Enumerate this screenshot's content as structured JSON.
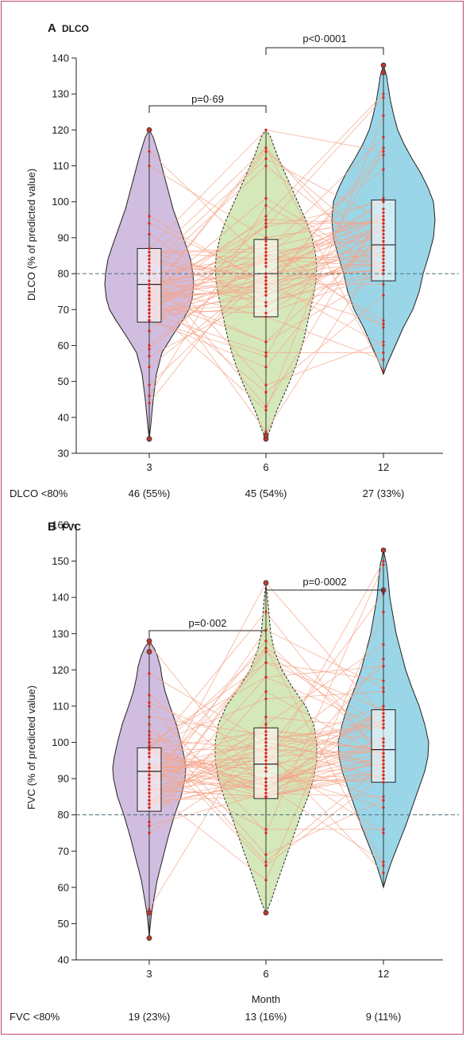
{
  "colors": {
    "purple": "#cbb6db",
    "green": "#cfe5b3",
    "blue": "#8fd1e6",
    "line": "#f4a58a",
    "dot": "#d9251d",
    "dashed": "#4f6d7a",
    "frame": "#c0457a"
  },
  "panels": [
    {
      "letter": "A",
      "name": "DLCO",
      "ylabel": "DLCO (% of predicted value)",
      "xlabel": "",
      "threshold_label": "DLCO <80%",
      "threshold_counts": [
        "46 (55%)",
        "45 (54%)",
        "27 (33%)"
      ],
      "pvalues": [
        "p=0·69",
        "p<0·0001"
      ],
      "ticks": [
        "30",
        "40",
        "50",
        "60",
        "70",
        "80",
        "90",
        "100",
        "110",
        "120",
        "130",
        "140"
      ]
    },
    {
      "letter": "B",
      "name": "FVC",
      "ylabel": "FVC (% of predicted value)",
      "xlabel": "Month",
      "threshold_label": "FVC <80%",
      "threshold_counts": [
        "19 (23%)",
        "13 (16%)",
        "9 (11%)"
      ],
      "pvalues": [
        "p=0·002",
        "p=0·0002"
      ],
      "ticks": [
        "40",
        "50",
        "60",
        "70",
        "80",
        "90",
        "100",
        "110",
        "120",
        "130",
        "140",
        "150",
        "160"
      ]
    }
  ],
  "chart_data": [
    {
      "type": "violin",
      "title": "A DLCO",
      "xlabel": "",
      "ylabel": "DLCO (% of predicted value)",
      "categories": [
        "3",
        "6",
        "12"
      ],
      "ylim": [
        30,
        140
      ],
      "reference_line": 80,
      "boxes": [
        {
          "month": "3",
          "min": 34,
          "q1": 66.5,
          "median": 77,
          "q3": 87,
          "max": 120,
          "outliers": [
            120,
            34,
            34
          ]
        },
        {
          "month": "6",
          "min": 34,
          "q1": 68,
          "median": 80,
          "q3": 89.5,
          "max": 120,
          "outliers": [
            34,
            35
          ]
        },
        {
          "month": "12",
          "min": 52,
          "q1": 78,
          "median": 88,
          "q3": 100.5,
          "max": 138,
          "outliers": [
            138,
            136
          ]
        }
      ],
      "comparisons": [
        {
          "from": "3",
          "to": "6",
          "p": "p=0·69"
        },
        {
          "from": "6",
          "to": "12",
          "p": "p<0·0001"
        }
      ],
      "below_80_counts": [
        "46 (55%)",
        "45 (54%)",
        "27 (33%)"
      ]
    },
    {
      "type": "violin",
      "title": "B FVC",
      "xlabel": "Month",
      "ylabel": "FVC (% of predicted value)",
      "categories": [
        "3",
        "6",
        "12"
      ],
      "ylim": [
        40,
        160
      ],
      "reference_line": 80,
      "boxes": [
        {
          "month": "3",
          "min": 46,
          "q1": 81,
          "median": 92,
          "q3": 98.5,
          "max": 128,
          "outliers": [
            128,
            125,
            53,
            46
          ]
        },
        {
          "month": "6",
          "min": 53,
          "q1": 84.5,
          "median": 94,
          "q3": 104,
          "max": 144,
          "outliers": [
            144,
            53
          ]
        },
        {
          "month": "12",
          "min": 60,
          "q1": 89,
          "median": 98,
          "q3": 109,
          "max": 153,
          "outliers": [
            153,
            142
          ]
        }
      ],
      "comparisons": [
        {
          "from": "3",
          "to": "6",
          "p": "p=0·002"
        },
        {
          "from": "6",
          "to": "12",
          "p": "p=0·0002"
        }
      ],
      "below_80_counts": [
        "19 (23%)",
        "13 (16%)",
        "9 (11%)"
      ]
    }
  ]
}
